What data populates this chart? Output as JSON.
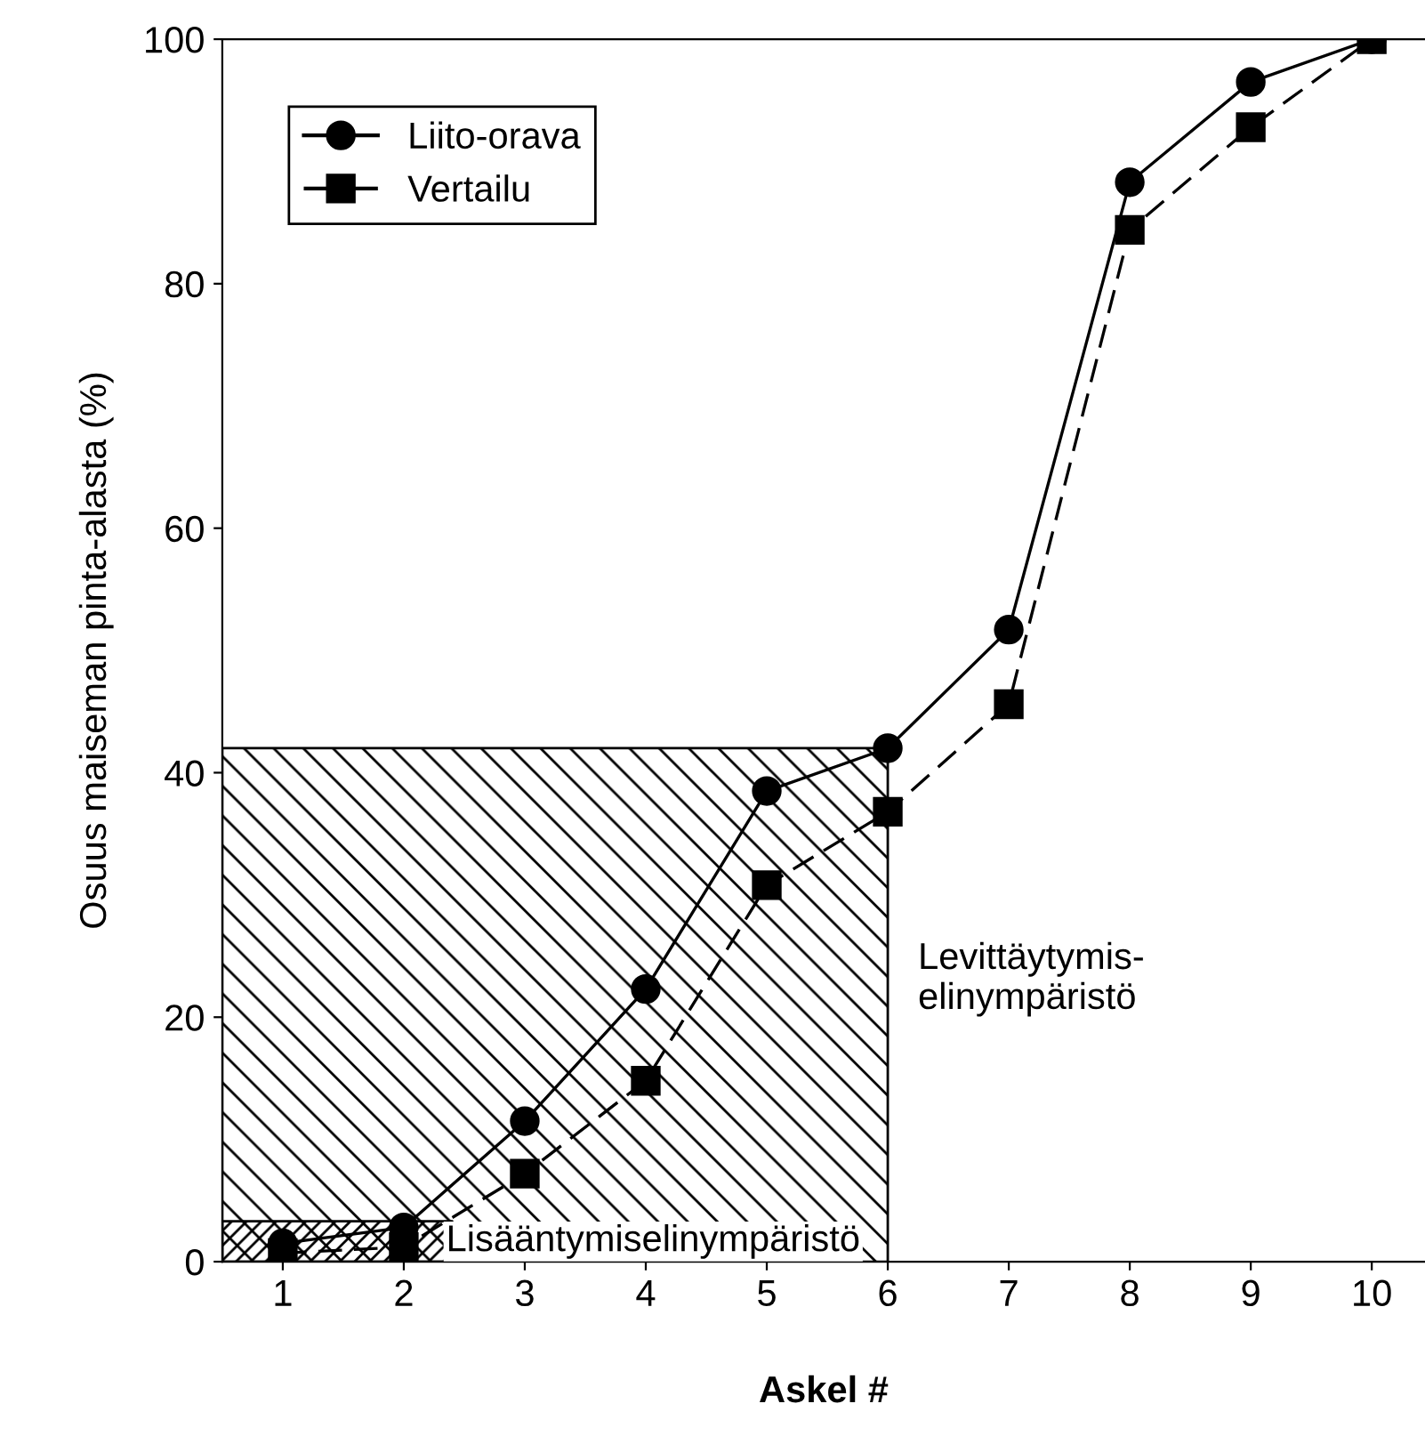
{
  "chart_data": {
    "type": "line",
    "xlabel": "Askel #",
    "ylabel": "Osuus maiseman pinta-alasta (%)",
    "x": [
      1,
      2,
      3,
      4,
      5,
      6,
      7,
      8,
      9,
      10
    ],
    "series": [
      {
        "name": "Liito-orava",
        "color": "#000000",
        "marker": "circle",
        "line_style": "solid",
        "values": [
          1.5,
          2.8,
          11.5,
          22.3,
          38.5,
          42,
          51.7,
          88.3,
          96.5,
          100
        ]
      },
      {
        "name": "Vertailu",
        "color": "#000000",
        "marker": "square",
        "line_style": "dashed",
        "values": [
          0.7,
          1.2,
          7.2,
          14.8,
          30.8,
          36.8,
          45.6,
          84.4,
          92.8,
          100
        ]
      },
      {
        "type": "area",
        "name": "Levittäytymis-\nelinympäristö",
        "color": "#000000",
        "x": [
          0.5,
          6
        ],
        "values": [
          42,
          42
        ]
      },
      {
        "type": "area",
        "name": "Lisääntymiselinympäristö",
        "color": "#000000",
        "x": [
          0.5,
          2.4
        ],
        "values": [
          3.3,
          3.3
        ]
      }
    ],
    "xlim": [
      0.5,
      10.44
    ],
    "ylim": [
      0,
      100
    ],
    "xticks": [
      1,
      2,
      3,
      4,
      5,
      6,
      7,
      8,
      9,
      10
    ],
    "yticks": [
      0,
      20,
      40,
      60,
      80,
      100
    ],
    "legend": "top left",
    "grid": false
  }
}
